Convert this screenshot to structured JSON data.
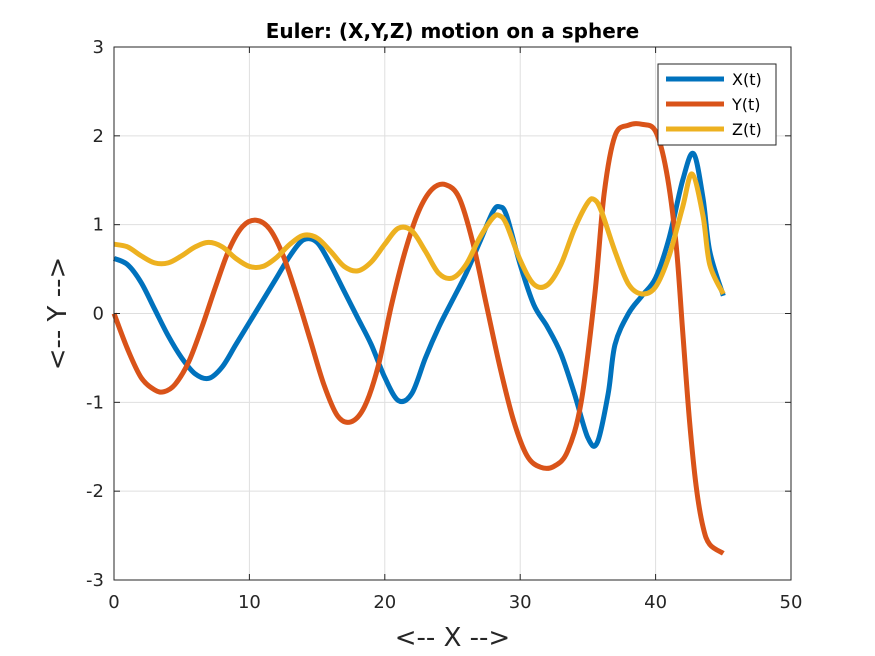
{
  "chart_data": {
    "type": "line",
    "title": "Euler: (X,Y,Z) motion on a sphere",
    "xlabel": "<-- X -->",
    "ylabel": "<-- Y -->",
    "xlim": [
      0,
      50
    ],
    "ylim": [
      -3,
      3
    ],
    "xticks": [
      0,
      10,
      20,
      30,
      40,
      50
    ],
    "yticks": [
      -3,
      -2,
      -1,
      0,
      1,
      2,
      3
    ],
    "grid": true,
    "legend_position": "top-right",
    "series": [
      {
        "name": "X(t)",
        "color": "#0072BD",
        "x": [
          0,
          1,
          2,
          3,
          4,
          5,
          6,
          7,
          8,
          9,
          10,
          11,
          12,
          13,
          14,
          15,
          16,
          17,
          18,
          19,
          20,
          21,
          22,
          23,
          24,
          25,
          26,
          27,
          28,
          28.5,
          29,
          30,
          31,
          32,
          33,
          34,
          35,
          35.7,
          36.5,
          37,
          38,
          39,
          40,
          41,
          42,
          42.8,
          43.5,
          44,
          45
        ],
        "y": [
          0.62,
          0.55,
          0.35,
          0.05,
          -0.25,
          -0.5,
          -0.68,
          -0.73,
          -0.6,
          -0.35,
          -0.1,
          0.15,
          0.4,
          0.65,
          0.83,
          0.8,
          0.55,
          0.25,
          -0.05,
          -0.35,
          -0.72,
          -0.98,
          -0.9,
          -0.5,
          -0.15,
          0.15,
          0.45,
          0.8,
          1.15,
          1.2,
          1.1,
          0.55,
          0.1,
          -0.15,
          -0.45,
          -0.9,
          -1.4,
          -1.45,
          -0.9,
          -0.35,
          0.0,
          0.2,
          0.4,
          0.85,
          1.5,
          1.8,
          1.3,
          0.7,
          0.2
        ]
      },
      {
        "name": "Y(t)",
        "color": "#D95319",
        "x": [
          0,
          1,
          2,
          3,
          3.7,
          4.5,
          5.5,
          6.5,
          7.5,
          8.5,
          9.5,
          10.5,
          11.5,
          12.5,
          13.5,
          14.5,
          15.5,
          16.5,
          17.5,
          18.5,
          19.5,
          20.5,
          21.5,
          22.5,
          23.5,
          24.5,
          25.5,
          26.5,
          27.5,
          28.5,
          29.5,
          30.5,
          31.5,
          32.5,
          33.5,
          34.5,
          35.5,
          36.2,
          37,
          38,
          39,
          40,
          40.8,
          41.5,
          42,
          42.5,
          43,
          43.5,
          44,
          45
        ],
        "y": [
          0.0,
          -0.4,
          -0.72,
          -0.86,
          -0.88,
          -0.8,
          -0.55,
          -0.15,
          0.3,
          0.72,
          0.98,
          1.05,
          0.95,
          0.65,
          0.2,
          -0.3,
          -0.8,
          -1.15,
          -1.22,
          -1.05,
          -0.6,
          0.1,
          0.7,
          1.15,
          1.4,
          1.45,
          1.3,
          0.8,
          0.1,
          -0.6,
          -1.2,
          -1.6,
          -1.73,
          -1.72,
          -1.55,
          -1.0,
          0.2,
          1.35,
          2.0,
          2.12,
          2.13,
          2.05,
          1.6,
          0.8,
          -0.2,
          -1.2,
          -1.95,
          -2.4,
          -2.6,
          -2.7
        ]
      },
      {
        "name": "Z(t)",
        "color": "#EDB120",
        "x": [
          0,
          1,
          2,
          3,
          4,
          5,
          6,
          7,
          8,
          9,
          10,
          11,
          12,
          13,
          14,
          15,
          16,
          17,
          18,
          19,
          20,
          21,
          22,
          23,
          24,
          25,
          26,
          27,
          28,
          28.5,
          29,
          30,
          31,
          32,
          33,
          34,
          35,
          35.5,
          36,
          37,
          38,
          39,
          40,
          41,
          42,
          42.7,
          43.5,
          44,
          45
        ],
        "y": [
          0.78,
          0.75,
          0.65,
          0.57,
          0.57,
          0.65,
          0.75,
          0.8,
          0.75,
          0.62,
          0.53,
          0.53,
          0.63,
          0.78,
          0.88,
          0.85,
          0.7,
          0.53,
          0.48,
          0.58,
          0.78,
          0.96,
          0.93,
          0.7,
          0.45,
          0.4,
          0.55,
          0.85,
          1.08,
          1.1,
          1.0,
          0.6,
          0.33,
          0.32,
          0.55,
          0.95,
          1.25,
          1.28,
          1.15,
          0.7,
          0.33,
          0.22,
          0.3,
          0.65,
          1.2,
          1.57,
          1.1,
          0.55,
          0.22
        ]
      }
    ]
  }
}
